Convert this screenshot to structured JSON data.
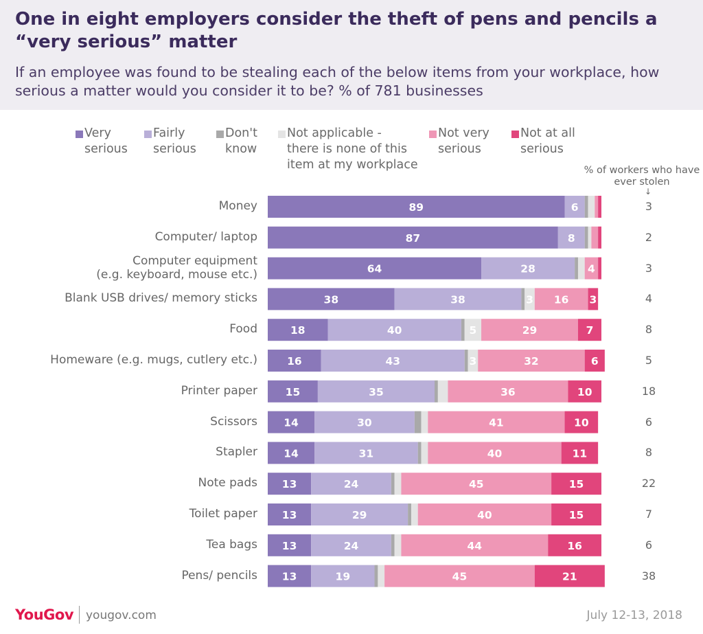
{
  "chart_data": {
    "type": "stacked-bar",
    "title": "One in eight employers consider the theft of pens and pencils a “very serious” matter",
    "subtitle": "If an employee was found to be stealing each of the below items from your workplace, how serious a matter would you consider it to be? % of 781 businesses",
    "categories": [
      "Money",
      "Computer/ laptop",
      "Computer equipment\n(e.g. keyboard, mouse etc.)",
      "Blank USB drives/ memory sticks",
      "Food",
      "Homeware (e.g. mugs, cutlery etc.)",
      "Printer paper",
      "Scissors",
      "Stapler",
      "Note pads",
      "Toilet paper",
      "Tea bags",
      "Pens/ pencils"
    ],
    "xlim": [
      0,
      100
    ],
    "series": [
      {
        "name": "Very\nserious",
        "color": "#8a78b9",
        "values": [
          89,
          87,
          64,
          38,
          18,
          16,
          15,
          14,
          14,
          13,
          13,
          13,
          13
        ],
        "value_labels": [
          "89",
          "87",
          "64",
          "38",
          "18",
          "16",
          "15",
          "14",
          "14",
          "13",
          "13",
          "13",
          "13"
        ]
      },
      {
        "name": "Fairly\nserious",
        "color": "#b9afd8",
        "values": [
          6,
          8,
          28,
          38,
          40,
          43,
          35,
          30,
          31,
          24,
          29,
          24,
          19
        ],
        "value_labels": [
          "6",
          "8",
          "28",
          "38",
          "40",
          "43",
          "35",
          "30",
          "31",
          "24",
          "29",
          "24",
          "19"
        ]
      },
      {
        "name": "Don't\nknow",
        "color": "#a9a9a9",
        "values": [
          1,
          1,
          1,
          1,
          1,
          1,
          1,
          2,
          1,
          1,
          1,
          1,
          1
        ],
        "value_labels": [
          null,
          null,
          null,
          null,
          null,
          null,
          null,
          null,
          null,
          null,
          null,
          null,
          null
        ]
      },
      {
        "name": "Not applicable -\nthere is none of this\nitem at my workplace",
        "color": "#e4e4e4",
        "values": [
          2,
          1,
          2,
          3,
          5,
          3,
          3,
          2,
          2,
          2,
          2,
          2,
          2
        ],
        "value_labels": [
          null,
          null,
          null,
          "3",
          "5",
          "3",
          null,
          null,
          null,
          null,
          null,
          null,
          null
        ]
      },
      {
        "name": "Not very\nserious",
        "color": "#ef97b6",
        "values": [
          1,
          2,
          4,
          16,
          29,
          32,
          36,
          41,
          40,
          45,
          40,
          44,
          45
        ],
        "value_labels": [
          null,
          null,
          "4",
          "16",
          "29",
          "32",
          "36",
          "41",
          "40",
          "45",
          "40",
          "44",
          "45"
        ]
      },
      {
        "name": "Not at all\nserious",
        "color": "#e1457c",
        "values": [
          1,
          1,
          1,
          3,
          7,
          6,
          10,
          10,
          11,
          15,
          15,
          16,
          21
        ],
        "value_labels": [
          null,
          null,
          null,
          "3",
          "7",
          "6",
          "10",
          "10",
          "11",
          "15",
          "15",
          "16",
          "21"
        ]
      }
    ],
    "stolen": {
      "label": "% of workers who have ever stolen",
      "values": [
        3,
        2,
        3,
        4,
        8,
        5,
        18,
        6,
        8,
        22,
        7,
        6,
        38
      ]
    }
  },
  "footer": {
    "brand": "YouGov",
    "site": "yougov.com",
    "date": "July 12-13, 2018"
  }
}
